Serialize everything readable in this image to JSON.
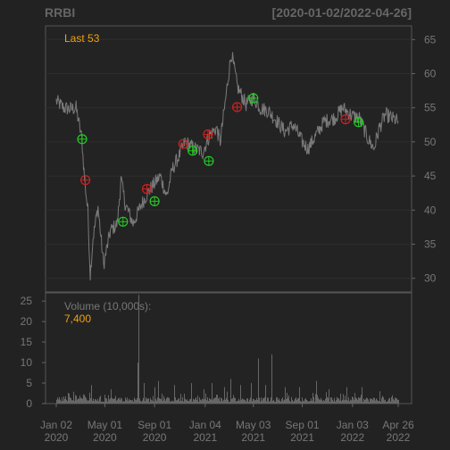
{
  "chart_data": {
    "type": "line",
    "title": "RRBI",
    "date_range": "[2020-01-02/2022-04-26]",
    "last_label": "Last 53",
    "price": {
      "ylim": [
        28,
        67
      ],
      "yticks": [
        30,
        35,
        40,
        45,
        50,
        55,
        60,
        65
      ],
      "color": "#7a7a7a",
      "keypoints": [
        [
          "2020-01-02",
          56.0
        ],
        [
          "2020-01-20",
          55.0
        ],
        [
          "2020-02-05",
          54.8
        ],
        [
          "2020-02-20",
          55.0
        ],
        [
          "2020-03-05",
          50.5
        ],
        [
          "2020-03-12",
          44.5
        ],
        [
          "2020-03-20",
          40.0
        ],
        [
          "2020-03-26",
          30.5
        ],
        [
          "2020-04-02",
          36.0
        ],
        [
          "2020-04-14",
          40.5
        ],
        [
          "2020-04-28",
          32.0
        ],
        [
          "2020-05-15",
          37.0
        ],
        [
          "2020-06-01",
          38.0
        ],
        [
          "2020-06-10",
          44.5
        ],
        [
          "2020-06-20",
          41.0
        ],
        [
          "2020-07-10",
          38.0
        ],
        [
          "2020-08-01",
          41.0
        ],
        [
          "2020-08-20",
          43.0
        ],
        [
          "2020-09-15",
          45.0
        ],
        [
          "2020-10-01",
          42.0
        ],
        [
          "2020-10-15",
          46.0
        ],
        [
          "2020-11-01",
          48.0
        ],
        [
          "2020-11-15",
          50.0
        ],
        [
          "2020-12-10",
          49.0
        ],
        [
          "2020-12-29",
          48.5
        ],
        [
          "2021-01-15",
          51.0
        ],
        [
          "2021-02-01",
          52.0
        ],
        [
          "2021-02-10",
          50.0
        ],
        [
          "2021-02-22",
          55.5
        ],
        [
          "2021-03-03",
          60.0
        ],
        [
          "2021-03-10",
          63.0
        ],
        [
          "2021-03-25",
          58.0
        ],
        [
          "2021-04-15",
          55.5
        ],
        [
          "2021-05-03",
          56.5
        ],
        [
          "2021-05-20",
          55.0
        ],
        [
          "2021-06-10",
          54.5
        ],
        [
          "2021-07-01",
          53.0
        ],
        [
          "2021-07-20",
          51.5
        ],
        [
          "2021-08-10",
          52.5
        ],
        [
          "2021-09-01",
          50.0
        ],
        [
          "2021-09-15",
          49.0
        ],
        [
          "2021-10-05",
          51.0
        ],
        [
          "2021-10-25",
          53.0
        ],
        [
          "2021-11-20",
          53.5
        ],
        [
          "2021-12-10",
          55.0
        ],
        [
          "2022-01-03",
          53.8
        ],
        [
          "2022-01-20",
          53.5
        ],
        [
          "2022-02-10",
          50.5
        ],
        [
          "2022-02-25",
          49.0
        ],
        [
          "2022-03-10",
          52.0
        ],
        [
          "2022-03-25",
          54.0
        ],
        [
          "2022-04-10",
          53.5
        ],
        [
          "2022-04-26",
          53.0
        ]
      ],
      "buy_signals": [
        [
          "2020-03-06",
          50.4
        ],
        [
          "2020-06-15",
          38.3
        ],
        [
          "2020-09-01",
          41.3
        ],
        [
          "2020-12-04",
          48.7
        ],
        [
          "2021-01-13",
          47.2
        ],
        [
          "2021-05-03",
          56.4
        ],
        [
          "2022-01-18",
          52.9
        ]
      ],
      "sell_signals": [
        [
          "2020-03-14",
          44.4
        ],
        [
          "2020-08-13",
          43.1
        ],
        [
          "2020-11-11",
          49.7
        ],
        [
          "2021-01-11",
          51.1
        ],
        [
          "2021-03-24",
          55.1
        ],
        [
          "2021-12-17",
          53.3
        ]
      ],
      "buy_color": "#22cc22",
      "sell_color": "#cc2222"
    },
    "volume": {
      "label": "Volume (10,000s):",
      "last_value": "7,400",
      "ylim": [
        0,
        27
      ],
      "yticks": [
        0,
        5,
        10,
        15,
        20,
        25
      ],
      "spikes": [
        [
          "2020-03-27",
          4.5
        ],
        [
          "2020-05-15",
          3.5
        ],
        [
          "2020-07-20",
          10.0
        ],
        [
          "2020-07-23",
          26.5
        ],
        [
          "2020-08-05",
          5.0
        ],
        [
          "2020-09-01",
          4.0
        ],
        [
          "2020-09-10",
          5.5
        ],
        [
          "2020-10-20",
          4.5
        ],
        [
          "2020-12-01",
          5.0
        ],
        [
          "2020-12-30",
          3.5
        ],
        [
          "2021-01-20",
          5.0
        ],
        [
          "2021-02-20",
          4.0
        ],
        [
          "2021-03-08",
          6.0
        ],
        [
          "2021-04-01",
          4.5
        ],
        [
          "2021-04-26",
          5.0
        ],
        [
          "2021-05-14",
          11.0
        ],
        [
          "2021-06-01",
          4.5
        ],
        [
          "2021-06-16",
          12.0
        ],
        [
          "2021-07-20",
          4.0
        ],
        [
          "2021-08-25",
          4.0
        ],
        [
          "2021-10-05",
          5.5
        ],
        [
          "2021-11-05",
          3.5
        ],
        [
          "2021-12-20",
          4.0
        ],
        [
          "2022-01-26",
          4.0
        ],
        [
          "2022-03-10",
          3.0
        ]
      ]
    },
    "x_ticks": [
      {
        "date": "2020-01-02",
        "line1": "Jan 02",
        "line2": "2020"
      },
      {
        "date": "2020-05-01",
        "line1": "May 01",
        "line2": "2020"
      },
      {
        "date": "2020-09-01",
        "line1": "Sep 01",
        "line2": "2020"
      },
      {
        "date": "2021-01-04",
        "line1": "Jan 04",
        "line2": "2021"
      },
      {
        "date": "2021-05-03",
        "line1": "May 03",
        "line2": "2021"
      },
      {
        "date": "2021-09-01",
        "line1": "Sep 01",
        "line2": "2021"
      },
      {
        "date": "2022-01-03",
        "line1": "Jan 03",
        "line2": "2022"
      },
      {
        "date": "2022-04-26",
        "line1": "Apr 26",
        "line2": "2022"
      }
    ],
    "x_start": "2020-01-02",
    "x_end": "2022-04-26"
  }
}
